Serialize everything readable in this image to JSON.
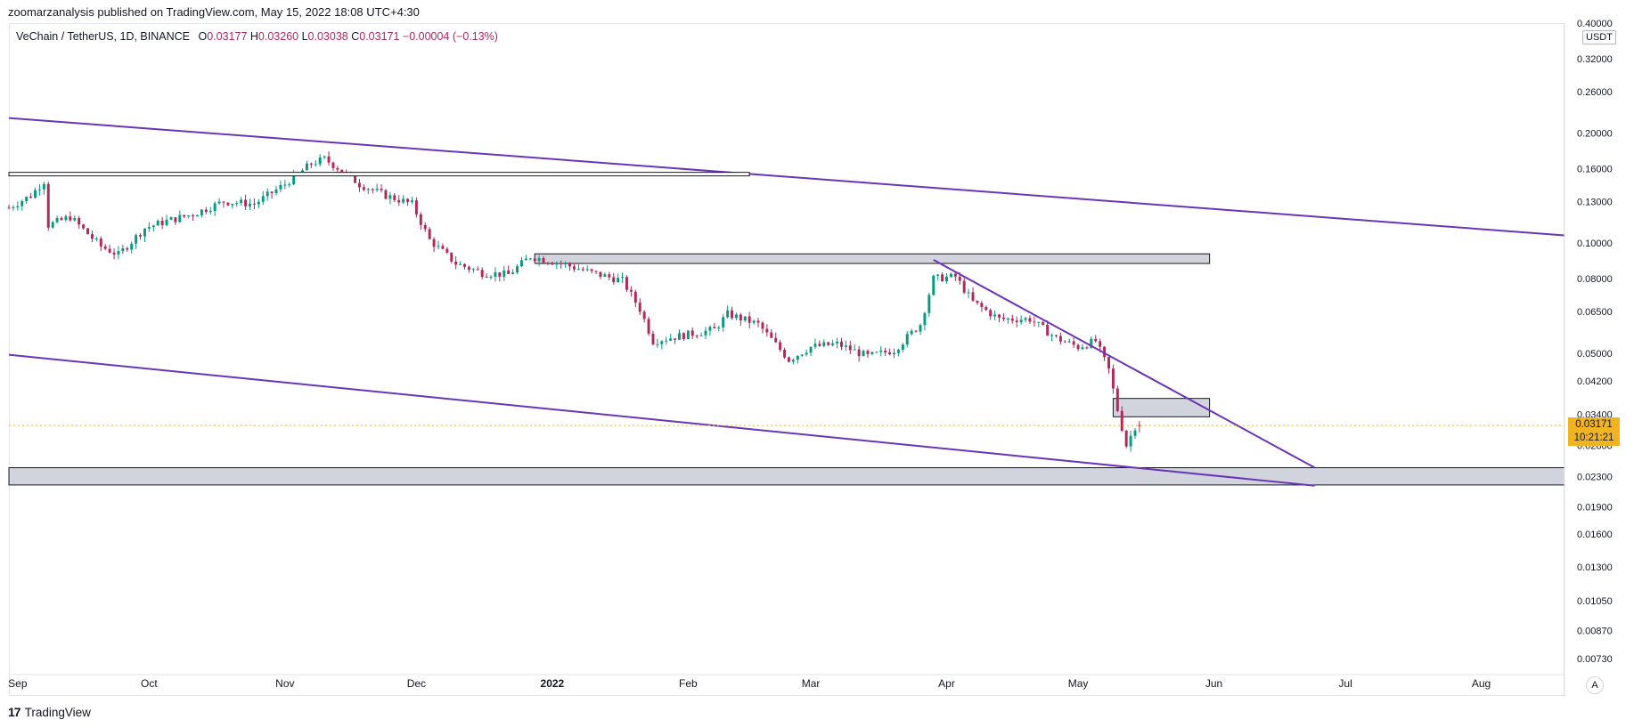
{
  "header": {
    "published_by": "zoomarzanalysis published on TradingView.com, May 15, 2022 18:08 UTC+4:30"
  },
  "legend": {
    "symbol": "VeChain / TetherUS, 1D, BINANCE",
    "open_label": "O",
    "open": "0.03177",
    "high_label": "H",
    "high": "0.03260",
    "low_label": "L",
    "low": "0.03038",
    "close_label": "C",
    "close": "0.03171",
    "change": "−0.00004 (−0.13%)"
  },
  "price_axis": {
    "currency": "USDT",
    "last_price": "0.03171",
    "countdown": "10:21:21",
    "auto_label": "A"
  },
  "footer": {
    "brand": "TradingView",
    "logo_glyph": "17"
  },
  "colors": {
    "up": "#26a69a",
    "down": "#ef5350",
    "candle_up": "#089981",
    "candle_down": "#b22856",
    "trendline": "#6a35b8",
    "zone_fill": "#d1d4dc",
    "last_price": "#f0b423"
  },
  "chart_data": {
    "type": "candlestick",
    "title": "VeChain / TetherUS, 1D, BINANCE",
    "y_scale": "log",
    "y_ticks": [
      "0.40000",
      "0.32000",
      "0.26000",
      "0.20000",
      "0.16000",
      "0.13000",
      "0.10000",
      "0.08000",
      "0.06500",
      "0.05000",
      "0.04200",
      "0.03400",
      "0.02800",
      "0.02300",
      "0.01900",
      "0.01600",
      "0.01300",
      "0.01050",
      "0.00870",
      "0.00730"
    ],
    "x_ticks": [
      "Sep",
      "Oct",
      "Nov",
      "Dec",
      "2022",
      "Feb",
      "Mar",
      "Apr",
      "May",
      "Jun",
      "Jul",
      "Aug"
    ],
    "x_range": [
      "2021-08-30",
      "2022-08-20"
    ],
    "ylim": [
      0.0066,
      0.4
    ],
    "price_path": [
      [
        "2021-08-30",
        0.125
      ],
      [
        "2021-09-04",
        0.135
      ],
      [
        "2021-09-07",
        0.148
      ],
      [
        "2021-09-08",
        0.112
      ],
      [
        "2021-09-13",
        0.118
      ],
      [
        "2021-09-20",
        0.098
      ],
      [
        "2021-09-24",
        0.093
      ],
      [
        "2021-09-30",
        0.11
      ],
      [
        "2021-10-05",
        0.115
      ],
      [
        "2021-10-11",
        0.12
      ],
      [
        "2021-10-18",
        0.13
      ],
      [
        "2021-10-25",
        0.128
      ],
      [
        "2021-11-01",
        0.145
      ],
      [
        "2021-11-07",
        0.165
      ],
      [
        "2021-11-10",
        0.17
      ],
      [
        "2021-11-14",
        0.158
      ],
      [
        "2021-11-18",
        0.145
      ],
      [
        "2021-11-24",
        0.135
      ],
      [
        "2021-11-30",
        0.128
      ],
      [
        "2021-12-04",
        0.102
      ],
      [
        "2021-12-10",
        0.088
      ],
      [
        "2021-12-16",
        0.083
      ],
      [
        "2021-12-22",
        0.082
      ],
      [
        "2021-12-27",
        0.092
      ],
      [
        "2022-01-03",
        0.088
      ],
      [
        "2022-01-10",
        0.083
      ],
      [
        "2022-01-17",
        0.079
      ],
      [
        "2022-01-21",
        0.066
      ],
      [
        "2022-01-24",
        0.054
      ],
      [
        "2022-01-31",
        0.056
      ],
      [
        "2022-02-07",
        0.058
      ],
      [
        "2022-02-10",
        0.064
      ],
      [
        "2022-02-17",
        0.06
      ],
      [
        "2022-02-24",
        0.048
      ],
      [
        "2022-03-01",
        0.052
      ],
      [
        "2022-03-07",
        0.053
      ],
      [
        "2022-03-14",
        0.049
      ],
      [
        "2022-03-20",
        0.051
      ],
      [
        "2022-03-26",
        0.06
      ],
      [
        "2022-03-29",
        0.08
      ],
      [
        "2022-04-03",
        0.081
      ],
      [
        "2022-04-07",
        0.069
      ],
      [
        "2022-04-13",
        0.062
      ],
      [
        "2022-04-20",
        0.062
      ],
      [
        "2022-04-26",
        0.055
      ],
      [
        "2022-05-01",
        0.052
      ],
      [
        "2022-05-05",
        0.054
      ],
      [
        "2022-05-08",
        0.045
      ],
      [
        "2022-05-10",
        0.035
      ],
      [
        "2022-05-12",
        0.028
      ],
      [
        "2022-05-14",
        0.0315
      ],
      [
        "2022-05-15",
        0.03171
      ]
    ],
    "last_candle": {
      "date": "2022-05-15",
      "open": 0.03177,
      "high": 0.0326,
      "low": 0.03038,
      "close": 0.03171
    },
    "annotations": [
      {
        "kind": "trendline",
        "from": [
          "2021-08-30",
          0.22
        ],
        "to": [
          "2022-08-20",
          0.105
        ]
      },
      {
        "kind": "trendline",
        "from": [
          "2021-08-30",
          0.0495
        ],
        "to": [
          "2022-06-24",
          0.0217
        ]
      },
      {
        "kind": "trendline",
        "from": [
          "2022-03-29",
          0.09
        ],
        "to": [
          "2022-06-24",
          0.0243
        ]
      },
      {
        "kind": "hline",
        "from": [
          "2021-08-30",
          0.1545
        ],
        "to": [
          "2022-02-15",
          0.1545
        ]
      },
      {
        "kind": "zone",
        "from": [
          "2021-12-28",
          0.0935
        ],
        "to": [
          "2022-05-31",
          0.088
        ]
      },
      {
        "kind": "zone",
        "from": [
          "2022-05-09",
          0.0376
        ],
        "to": [
          "2022-05-31",
          0.0335
        ]
      },
      {
        "kind": "zone",
        "from": [
          "2021-08-30",
          0.0243
        ],
        "to": [
          "2022-08-20",
          0.0218
        ]
      }
    ]
  }
}
